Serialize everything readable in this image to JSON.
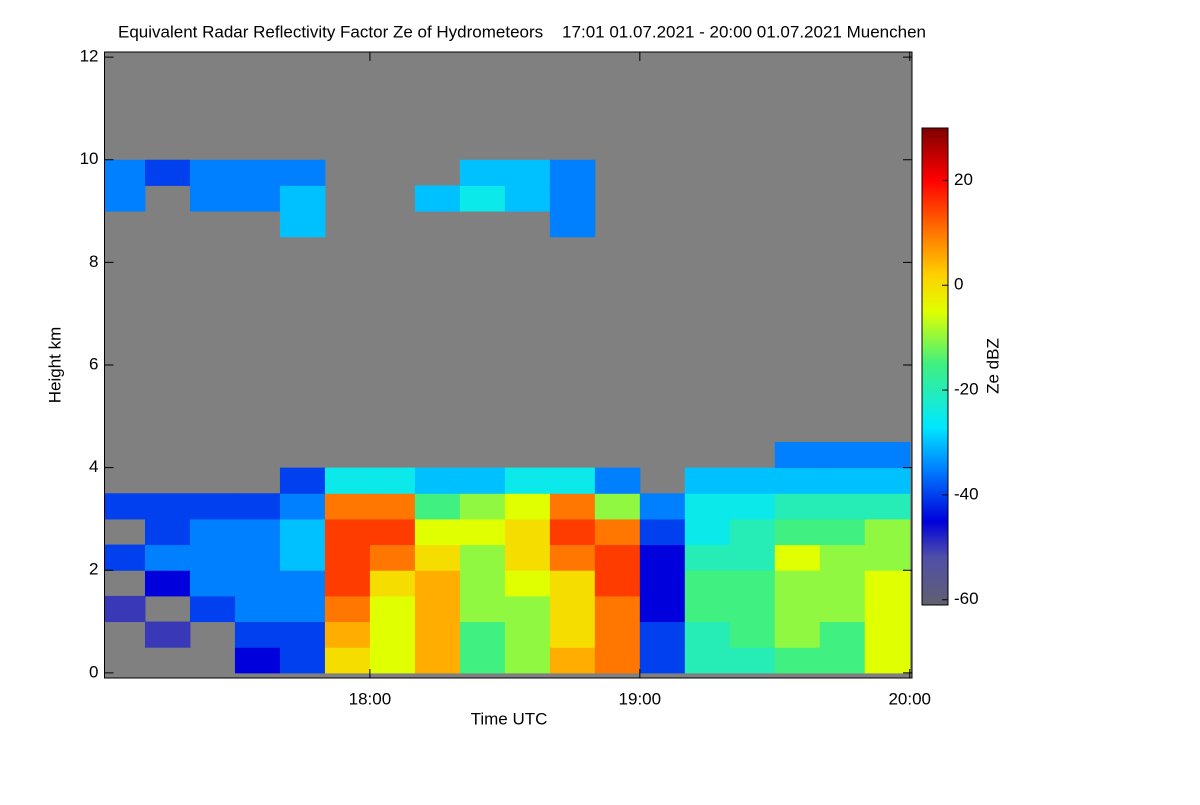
{
  "chart_data": {
    "type": "heatmap",
    "title": "Equivalent Radar Reflectivity Factor Ze of Hydrometeors    17:01 01.07.2021 - 20:00 01.07.2021 Muenchen",
    "x_label": "Time UTC",
    "y_label": "Height km",
    "colorbar_label": "Ze dBZ",
    "xlim": [
      1,
      180.5
    ],
    "xticks": [
      {
        "value": 60,
        "label": "18:00"
      },
      {
        "value": 120,
        "label": "19:00"
      },
      {
        "value": 180,
        "label": "20:00"
      }
    ],
    "ylim": [
      -0.1,
      12.1
    ],
    "yticks": [
      0,
      2,
      4,
      6,
      8,
      10,
      12
    ],
    "zlim": [
      -61,
      30
    ],
    "zticks": [
      20,
      0,
      -20,
      -40,
      -60
    ],
    "background": "#808080",
    "colorscale": [
      [
        -61,
        "#606070"
      ],
      [
        -52,
        "#5050a8"
      ],
      [
        -45,
        "#0000dd"
      ],
      [
        -35,
        "#0080ff"
      ],
      [
        -27,
        "#00e8ff"
      ],
      [
        -15,
        "#40f080"
      ],
      [
        -5,
        "#e0ff00"
      ],
      [
        2,
        "#ffd000"
      ],
      [
        12,
        "#ff6000"
      ],
      [
        20,
        "#ff0000"
      ],
      [
        30,
        "#800000"
      ]
    ],
    "x_edges": [
      1,
      10,
      20,
      30,
      40,
      50,
      60,
      70,
      80,
      90,
      100,
      110,
      120,
      130,
      140,
      150,
      160,
      170,
      180
    ],
    "y_edges": [
      0,
      0.5,
      1,
      1.5,
      2,
      2.5,
      3,
      3.5,
      4,
      4.5,
      8.5,
      9,
      9.5,
      10
    ],
    "z": [
      [
        null,
        null,
        null,
        -45,
        -40,
        0,
        -5,
        5,
        -15,
        -10,
        5,
        10,
        -40,
        -20,
        -20,
        -15,
        -15,
        -5
      ],
      [
        null,
        -50,
        null,
        -40,
        -40,
        5,
        -5,
        5,
        -15,
        -10,
        0,
        10,
        -40,
        -20,
        -15,
        -10,
        -15,
        -5
      ],
      [
        -50,
        null,
        -40,
        -35,
        -35,
        10,
        -5,
        5,
        -10,
        -10,
        0,
        10,
        -45,
        -15,
        -15,
        -10,
        -10,
        -5
      ],
      [
        null,
        -45,
        -35,
        -35,
        -35,
        15,
        0,
        5,
        -10,
        -5,
        0,
        15,
        -45,
        -15,
        -15,
        -10,
        -10,
        -5
      ],
      [
        -40,
        -35,
        -35,
        -35,
        -30,
        15,
        10,
        0,
        -10,
        0,
        10,
        15,
        -45,
        -20,
        -20,
        -5,
        -10,
        -10
      ],
      [
        null,
        -40,
        -35,
        -35,
        -30,
        15,
        15,
        -5,
        -5,
        0,
        15,
        10,
        -40,
        -25,
        -20,
        -15,
        -15,
        -10
      ],
      [
        -40,
        -40,
        -40,
        -40,
        -35,
        10,
        10,
        -15,
        -10,
        -5,
        10,
        -10,
        -35,
        -25,
        -25,
        -20,
        -20,
        -20
      ],
      [
        null,
        null,
        null,
        null,
        -40,
        -25,
        -25,
        -30,
        -30,
        -25,
        -25,
        -35,
        null,
        -30,
        -30,
        -30,
        -30,
        -30
      ],
      [
        null,
        null,
        null,
        null,
        null,
        null,
        null,
        null,
        null,
        null,
        null,
        null,
        null,
        null,
        null,
        -35,
        -35,
        -35
      ],
      [
        null,
        null,
        null,
        null,
        null,
        null,
        null,
        null,
        null,
        null,
        null,
        null,
        null,
        null,
        null,
        null,
        null,
        null
      ],
      [
        null,
        null,
        null,
        null,
        -30,
        null,
        null,
        null,
        null,
        null,
        -35,
        null,
        null,
        null,
        null,
        null,
        null,
        null
      ],
      [
        -35,
        null,
        -35,
        -35,
        -30,
        null,
        null,
        -30,
        -25,
        -30,
        -35,
        null,
        null,
        null,
        null,
        null,
        null,
        null
      ],
      [
        -35,
        -40,
        -35,
        -35,
        -35,
        null,
        null,
        null,
        -30,
        -30,
        -35,
        null,
        null,
        null,
        null,
        null,
        null,
        null
      ]
    ]
  }
}
